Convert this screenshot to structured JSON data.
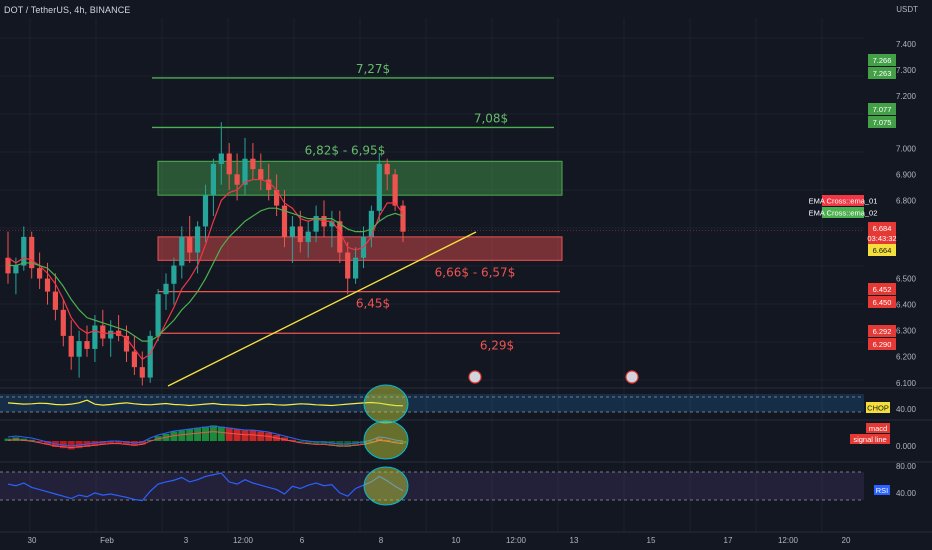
{
  "title": "DOT / TetherUS, 4h, BINANCE",
  "currency": "USDT",
  "colors": {
    "background": "#131722",
    "bull": "#26a69a",
    "bear": "#ef5350",
    "ema_01": "#f23645",
    "ema_02": "#4caf50",
    "trendline": "#f5e03b",
    "support": "#ef5350",
    "resistance": "#4caf50"
  },
  "chart_data": {
    "type": "candlestick",
    "title": "DOT / TetherUS, 4h, BINANCE",
    "ylabel": "USDT",
    "ylim": [
      6.08,
      7.5
    ],
    "x_ticks": [
      "30",
      "Feb",
      "3",
      "12:00",
      "6",
      "8",
      "10",
      "12:00",
      "13",
      "15",
      "17",
      "12:00",
      "20"
    ],
    "y_ticks": [
      "7.400",
      "7.300",
      "7.200",
      "7.000",
      "6.900",
      "6.800",
      "6.500",
      "6.400",
      "6.300",
      "6.200",
      "6.100"
    ],
    "price_tags": [
      {
        "text": "7.266",
        "kind": "res"
      },
      {
        "text": "7.263",
        "kind": "res"
      },
      {
        "text": "7.077",
        "kind": "res"
      },
      {
        "text": "7.075",
        "kind": "res"
      },
      {
        "text": "6.684",
        "kind": "sup"
      },
      {
        "text": "03:43:32",
        "kind": "sup"
      },
      {
        "text": "6.664",
        "kind": "cur"
      },
      {
        "text": "6.452",
        "kind": "sup"
      },
      {
        "text": "6.450",
        "kind": "sup"
      },
      {
        "text": "6.292",
        "kind": "sup"
      },
      {
        "text": "6.290",
        "kind": "sup"
      }
    ],
    "indicator_tags": [
      {
        "text": "EMA Cross::ema_01",
        "color": "#f23645"
      },
      {
        "text": "EMA Cross::ema_02",
        "color": "#4caf50"
      }
    ],
    "levels": [
      {
        "label": "7,27$",
        "value": 7.27,
        "kind": "resistance"
      },
      {
        "label": "7,08$",
        "value": 7.08,
        "kind": "resistance"
      },
      {
        "label": "6,45$",
        "value": 6.45,
        "kind": "support"
      },
      {
        "label": "6,29$",
        "value": 6.29,
        "kind": "support"
      }
    ],
    "zones": [
      {
        "label": "6,82$ - 6,95$",
        "from": 6.82,
        "to": 6.95,
        "kind": "resistance"
      },
      {
        "label": "6,66$ - 6,57$",
        "from": 6.57,
        "to": 6.66,
        "kind": "support"
      }
    ],
    "candles": [
      {
        "o": 6.58,
        "h": 6.68,
        "l": 6.48,
        "c": 6.52
      },
      {
        "o": 6.52,
        "h": 6.58,
        "l": 6.44,
        "c": 6.55
      },
      {
        "o": 6.55,
        "h": 6.7,
        "l": 6.53,
        "c": 6.66
      },
      {
        "o": 6.66,
        "h": 6.68,
        "l": 6.5,
        "c": 6.54
      },
      {
        "o": 6.54,
        "h": 6.6,
        "l": 6.46,
        "c": 6.5
      },
      {
        "o": 6.5,
        "h": 6.56,
        "l": 6.4,
        "c": 6.45
      },
      {
        "o": 6.45,
        "h": 6.52,
        "l": 6.34,
        "c": 6.38
      },
      {
        "o": 6.38,
        "h": 6.42,
        "l": 6.24,
        "c": 6.28
      },
      {
        "o": 6.28,
        "h": 6.34,
        "l": 6.15,
        "c": 6.2
      },
      {
        "o": 6.2,
        "h": 6.3,
        "l": 6.12,
        "c": 6.26
      },
      {
        "o": 6.26,
        "h": 6.32,
        "l": 6.2,
        "c": 6.23
      },
      {
        "o": 6.23,
        "h": 6.36,
        "l": 6.18,
        "c": 6.32
      },
      {
        "o": 6.32,
        "h": 6.38,
        "l": 6.24,
        "c": 6.27
      },
      {
        "o": 6.27,
        "h": 6.34,
        "l": 6.2,
        "c": 6.3
      },
      {
        "o": 6.3,
        "h": 6.36,
        "l": 6.26,
        "c": 6.28
      },
      {
        "o": 6.28,
        "h": 6.32,
        "l": 6.18,
        "c": 6.22
      },
      {
        "o": 6.22,
        "h": 6.28,
        "l": 6.13,
        "c": 6.16
      },
      {
        "o": 6.16,
        "h": 6.22,
        "l": 6.09,
        "c": 6.12
      },
      {
        "o": 6.12,
        "h": 6.3,
        "l": 6.1,
        "c": 6.28
      },
      {
        "o": 6.28,
        "h": 6.46,
        "l": 6.26,
        "c": 6.44
      },
      {
        "o": 6.44,
        "h": 6.52,
        "l": 6.38,
        "c": 6.48
      },
      {
        "o": 6.48,
        "h": 6.58,
        "l": 6.4,
        "c": 6.55
      },
      {
        "o": 6.55,
        "h": 6.7,
        "l": 6.5,
        "c": 6.66
      },
      {
        "o": 6.66,
        "h": 6.74,
        "l": 6.56,
        "c": 6.6
      },
      {
        "o": 6.6,
        "h": 6.72,
        "l": 6.52,
        "c": 6.7
      },
      {
        "o": 6.7,
        "h": 6.86,
        "l": 6.64,
        "c": 6.82
      },
      {
        "o": 6.82,
        "h": 6.96,
        "l": 6.74,
        "c": 6.94
      },
      {
        "o": 6.94,
        "h": 7.1,
        "l": 6.86,
        "c": 6.98
      },
      {
        "o": 6.98,
        "h": 7.02,
        "l": 6.84,
        "c": 6.9
      },
      {
        "o": 6.9,
        "h": 6.98,
        "l": 6.8,
        "c": 6.86
      },
      {
        "o": 6.86,
        "h": 7.04,
        "l": 6.82,
        "c": 6.96
      },
      {
        "o": 6.96,
        "h": 7.02,
        "l": 6.88,
        "c": 6.92
      },
      {
        "o": 6.92,
        "h": 6.98,
        "l": 6.84,
        "c": 6.88
      },
      {
        "o": 6.88,
        "h": 6.94,
        "l": 6.8,
        "c": 6.84
      },
      {
        "o": 6.84,
        "h": 6.9,
        "l": 6.74,
        "c": 6.78
      },
      {
        "o": 6.78,
        "h": 6.84,
        "l": 6.62,
        "c": 6.66
      },
      {
        "o": 6.66,
        "h": 6.74,
        "l": 6.56,
        "c": 6.7
      },
      {
        "o": 6.7,
        "h": 6.76,
        "l": 6.6,
        "c": 6.64
      },
      {
        "o": 6.64,
        "h": 6.72,
        "l": 6.58,
        "c": 6.68
      },
      {
        "o": 6.68,
        "h": 6.78,
        "l": 6.64,
        "c": 6.74
      },
      {
        "o": 6.74,
        "h": 6.8,
        "l": 6.66,
        "c": 6.7
      },
      {
        "o": 6.7,
        "h": 6.76,
        "l": 6.62,
        "c": 6.72
      },
      {
        "o": 6.72,
        "h": 6.76,
        "l": 6.56,
        "c": 6.6
      },
      {
        "o": 6.6,
        "h": 6.64,
        "l": 6.44,
        "c": 6.5
      },
      {
        "o": 6.5,
        "h": 6.62,
        "l": 6.48,
        "c": 6.58
      },
      {
        "o": 6.58,
        "h": 6.7,
        "l": 6.54,
        "c": 6.66
      },
      {
        "o": 6.66,
        "h": 6.78,
        "l": 6.62,
        "c": 6.76
      },
      {
        "o": 6.76,
        "h": 6.98,
        "l": 6.72,
        "c": 6.94
      },
      {
        "o": 6.94,
        "h": 6.96,
        "l": 6.84,
        "c": 6.9
      },
      {
        "o": 6.9,
        "h": 6.92,
        "l": 6.76,
        "c": 6.78
      },
      {
        "o": 6.78,
        "h": 6.8,
        "l": 6.64,
        "c": 6.68
      }
    ],
    "ema_01": [
      6.58,
      6.56,
      6.58,
      6.57,
      6.55,
      6.52,
      6.48,
      6.42,
      6.35,
      6.31,
      6.29,
      6.3,
      6.29,
      6.29,
      6.29,
      6.27,
      6.23,
      6.19,
      6.21,
      6.27,
      6.33,
      6.39,
      6.46,
      6.5,
      6.55,
      6.63,
      6.72,
      6.8,
      6.83,
      6.84,
      6.87,
      6.88,
      6.88,
      6.87,
      6.84,
      6.79,
      6.77,
      6.73,
      6.72,
      6.73,
      6.72,
      6.72,
      6.68,
      6.62,
      6.61,
      6.62,
      6.66,
      6.74,
      6.79,
      6.79,
      6.75
    ],
    "ema_02": [
      6.55,
      6.55,
      6.56,
      6.56,
      6.55,
      6.54,
      6.51,
      6.47,
      6.42,
      6.38,
      6.35,
      6.34,
      6.33,
      6.32,
      6.31,
      6.3,
      6.28,
      6.26,
      6.26,
      6.28,
      6.31,
      6.34,
      6.38,
      6.41,
      6.45,
      6.5,
      6.56,
      6.62,
      6.66,
      6.69,
      6.72,
      6.74,
      6.76,
      6.77,
      6.77,
      6.76,
      6.75,
      6.74,
      6.73,
      6.73,
      6.73,
      6.73,
      6.71,
      6.69,
      6.68,
      6.68,
      6.69,
      6.72,
      6.74,
      6.75,
      6.74
    ],
    "trendline": {
      "from_index": 17,
      "from_value": 6.1,
      "to_index": 63,
      "to_value": 6.66
    },
    "indicators": {
      "chop": {
        "label": "CHOP",
        "value_label": "40.00",
        "values": [
          52,
          50,
          48,
          49,
          51,
          50,
          47,
          46,
          48,
          52,
          60,
          48,
          45,
          47,
          50,
          52,
          49,
          47,
          46,
          48,
          50,
          47,
          46,
          44,
          46,
          48,
          50,
          47,
          46,
          45,
          44,
          46,
          47,
          48,
          46,
          45,
          47,
          49,
          48,
          46,
          45,
          44,
          46,
          48,
          50,
          52,
          53,
          51,
          47,
          44,
          43
        ]
      },
      "macd": {
        "label": "macd",
        "signal_label": "signal line",
        "value_label": "0.000",
        "hist": [
          0.02,
          0.03,
          0.02,
          0.01,
          -0.01,
          -0.03,
          -0.05,
          -0.06,
          -0.07,
          -0.06,
          -0.05,
          -0.04,
          -0.03,
          -0.02,
          -0.02,
          -0.03,
          -0.04,
          -0.03,
          0.01,
          0.04,
          0.06,
          0.08,
          0.09,
          0.1,
          0.11,
          0.12,
          0.13,
          0.12,
          0.11,
          0.1,
          0.09,
          0.09,
          0.08,
          0.07,
          0.05,
          0.03,
          0.01,
          -0.01,
          -0.02,
          -0.03,
          -0.03,
          -0.04,
          -0.05,
          -0.05,
          -0.04,
          -0.03,
          -0.01,
          0.02,
          0.01,
          -0.01,
          -0.02
        ]
      },
      "rsi": {
        "label": "RSI",
        "levels": [
          "80.00",
          "40.00"
        ],
        "values": [
          58,
          55,
          60,
          52,
          48,
          44,
          40,
          36,
          32,
          38,
          35,
          42,
          38,
          40,
          37,
          34,
          30,
          28,
          45,
          58,
          62,
          65,
          70,
          62,
          66,
          72,
          75,
          78,
          62,
          58,
          66,
          60,
          56,
          52,
          48,
          40,
          54,
          50,
          56,
          60,
          55,
          57,
          42,
          36,
          50,
          56,
          62,
          72,
          64,
          54,
          46
        ]
      }
    },
    "x_axis_markers": [
      "flag-event-1",
      "flag-event-2"
    ]
  }
}
